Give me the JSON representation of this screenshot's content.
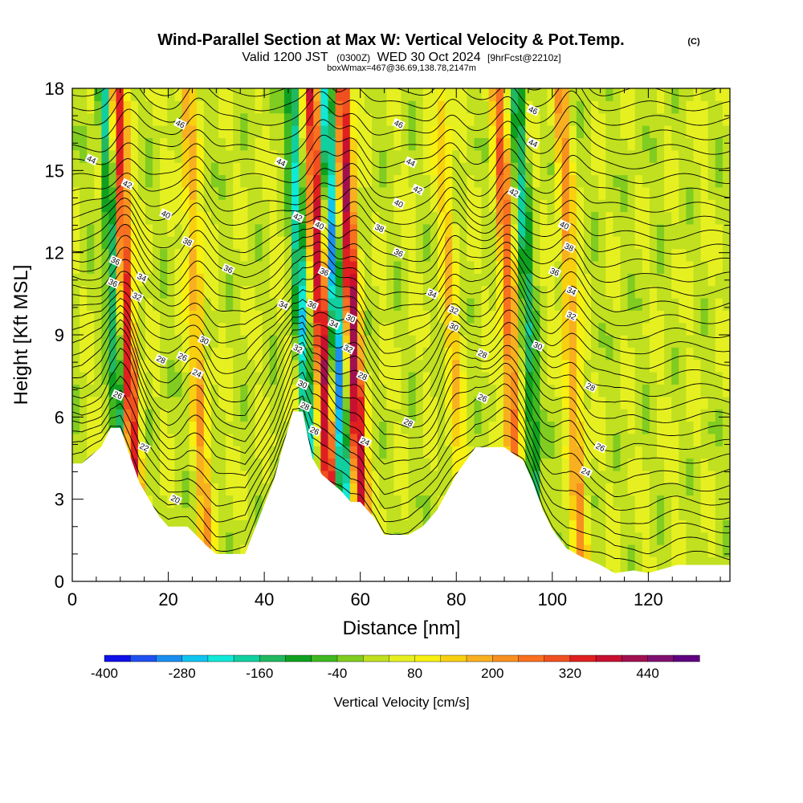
{
  "title": {
    "main": "Wind-Parallel Section at Max W: Vertical Velocity & Pot.Temp.",
    "copyright": "(C)",
    "valid_prefix": "Valid 1200 JST",
    "valid_utc": "(0300Z)",
    "valid_date": "WED 30 Oct 2024",
    "forecast": "[9hrFcst@2210z]",
    "boxwmax": "boxWmax=467@36.69,138.78,2147m"
  },
  "chart_data": {
    "type": "heatmap",
    "xlabel": "Distance [nm]",
    "ylabel": "Height [Kft MSL]",
    "xlim": [
      0,
      137
    ],
    "ylim": [
      0,
      18
    ],
    "x_ticks": [
      "0",
      "20",
      "40",
      "60",
      "80",
      "100",
      "120"
    ],
    "y_ticks": [
      "0",
      "3",
      "6",
      "9",
      "12",
      "15",
      "18"
    ],
    "terrain_kft": [
      [
        0,
        4.3
      ],
      [
        2,
        4.3
      ],
      [
        4,
        4.6
      ],
      [
        6,
        4.9
      ],
      [
        8,
        5.6
      ],
      [
        10,
        5.6
      ],
      [
        12,
        4.6
      ],
      [
        14,
        3.6
      ],
      [
        16,
        3.0
      ],
      [
        18,
        2.4
      ],
      [
        20,
        2.0
      ],
      [
        24,
        2.0
      ],
      [
        28,
        1.3
      ],
      [
        30,
        1.0
      ],
      [
        36,
        1.0
      ],
      [
        38,
        1.9
      ],
      [
        42,
        3.7
      ],
      [
        44,
        5.0
      ],
      [
        46,
        6.2
      ],
      [
        48,
        6.2
      ],
      [
        50,
        4.5
      ],
      [
        52,
        3.9
      ],
      [
        56,
        3.3
      ],
      [
        58,
        2.9
      ],
      [
        60,
        2.9
      ],
      [
        63,
        2.3
      ],
      [
        65,
        1.7
      ],
      [
        70,
        1.7
      ],
      [
        73,
        2.0
      ],
      [
        76,
        2.6
      ],
      [
        80,
        3.9
      ],
      [
        84,
        4.9
      ],
      [
        90,
        4.9
      ],
      [
        94,
        4.4
      ],
      [
        96,
        3.6
      ],
      [
        98,
        2.6
      ],
      [
        100,
        1.9
      ],
      [
        103,
        1.2
      ],
      [
        106,
        0.9
      ],
      [
        110,
        0.6
      ],
      [
        113,
        0.3
      ],
      [
        117,
        0.4
      ],
      [
        120,
        0.3
      ],
      [
        126,
        0.6
      ],
      [
        137,
        0.6
      ]
    ],
    "updrafts": [
      {
        "x": 11.5,
        "w_max": 330
      },
      {
        "x": 52,
        "w_max": 360
      },
      {
        "x": 58.5,
        "w_max": 380
      },
      {
        "x": 91,
        "w_max": 240
      },
      {
        "x": 26,
        "w_max": 160
      },
      {
        "x": 79,
        "w_max": 120
      },
      {
        "x": 104,
        "w_max": 180
      }
    ],
    "downdrafts": [
      {
        "x": 9,
        "w_min": -220
      },
      {
        "x": 48,
        "w_min": -240
      },
      {
        "x": 55,
        "w_min": -320
      },
      {
        "x": 95,
        "w_min": -180
      }
    ],
    "theta_labels": [
      {
        "x": 4,
        "z": 15.4,
        "v": "44"
      },
      {
        "x": 22.5,
        "z": 16.7,
        "v": "46"
      },
      {
        "x": 11.5,
        "z": 14.5,
        "v": "42"
      },
      {
        "x": 19.5,
        "z": 13.4,
        "v": "40"
      },
      {
        "x": 24,
        "z": 12.4,
        "v": "38"
      },
      {
        "x": 9,
        "z": 11.7,
        "v": "36"
      },
      {
        "x": 8.5,
        "z": 10.9,
        "v": "36"
      },
      {
        "x": 14.5,
        "z": 11.1,
        "v": "34"
      },
      {
        "x": 13.5,
        "z": 10.4,
        "v": "32"
      },
      {
        "x": 32.5,
        "z": 11.4,
        "v": "36"
      },
      {
        "x": 27.5,
        "z": 8.8,
        "v": "30"
      },
      {
        "x": 18.5,
        "z": 8.1,
        "v": "28"
      },
      {
        "x": 23,
        "z": 8.2,
        "v": "26"
      },
      {
        "x": 26,
        "z": 7.6,
        "v": "24"
      },
      {
        "x": 9.5,
        "z": 6.8,
        "v": "26"
      },
      {
        "x": 15,
        "z": 4.9,
        "v": "22"
      },
      {
        "x": 21.5,
        "z": 3.0,
        "v": "20"
      },
      {
        "x": 43.5,
        "z": 15.3,
        "v": "44"
      },
      {
        "x": 47,
        "z": 13.3,
        "v": "42"
      },
      {
        "x": 51.5,
        "z": 13.0,
        "v": "40"
      },
      {
        "x": 52.5,
        "z": 11.3,
        "v": "36"
      },
      {
        "x": 50,
        "z": 10.1,
        "v": "36"
      },
      {
        "x": 44,
        "z": 10.1,
        "v": "34"
      },
      {
        "x": 54.5,
        "z": 9.4,
        "v": "34"
      },
      {
        "x": 47,
        "z": 8.5,
        "v": "32"
      },
      {
        "x": 48,
        "z": 7.2,
        "v": "30"
      },
      {
        "x": 48.5,
        "z": 6.4,
        "v": "28"
      },
      {
        "x": 50.5,
        "z": 5.5,
        "v": "26"
      },
      {
        "x": 58,
        "z": 9.6,
        "v": "30"
      },
      {
        "x": 57.5,
        "z": 8.5,
        "v": "32"
      },
      {
        "x": 60.5,
        "z": 7.5,
        "v": "28"
      },
      {
        "x": 61,
        "z": 5.1,
        "v": "24"
      },
      {
        "x": 68,
        "z": 16.7,
        "v": "46"
      },
      {
        "x": 70.5,
        "z": 15.3,
        "v": "44"
      },
      {
        "x": 72,
        "z": 14.3,
        "v": "42"
      },
      {
        "x": 68,
        "z": 13.8,
        "v": "40"
      },
      {
        "x": 64,
        "z": 12.9,
        "v": "38"
      },
      {
        "x": 68,
        "z": 12.0,
        "v": "36"
      },
      {
        "x": 75,
        "z": 10.5,
        "v": "34"
      },
      {
        "x": 79.5,
        "z": 9.9,
        "v": "32"
      },
      {
        "x": 79.5,
        "z": 9.3,
        "v": "30"
      },
      {
        "x": 85.5,
        "z": 8.3,
        "v": "28"
      },
      {
        "x": 85.5,
        "z": 6.7,
        "v": "26"
      },
      {
        "x": 70,
        "z": 5.8,
        "v": "28"
      },
      {
        "x": 96,
        "z": 17.2,
        "v": "46"
      },
      {
        "x": 96,
        "z": 16.0,
        "v": "44"
      },
      {
        "x": 92,
        "z": 14.2,
        "v": "42"
      },
      {
        "x": 102.5,
        "z": 13.0,
        "v": "40"
      },
      {
        "x": 103.5,
        "z": 12.2,
        "v": "38"
      },
      {
        "x": 100.5,
        "z": 11.3,
        "v": "36"
      },
      {
        "x": 104,
        "z": 10.6,
        "v": "34"
      },
      {
        "x": 104,
        "z": 9.7,
        "v": "32"
      },
      {
        "x": 97,
        "z": 8.6,
        "v": "30"
      },
      {
        "x": 108,
        "z": 7.1,
        "v": "28"
      },
      {
        "x": 110,
        "z": 4.9,
        "v": "26"
      },
      {
        "x": 107,
        "z": 4.0,
        "v": "24"
      }
    ],
    "colorbar": {
      "label": "Vertical Velocity [cm/s]",
      "min": -400,
      "step": 40,
      "levels": 23,
      "tick_labels": [
        "-400",
        "-280",
        "-160",
        "-40",
        "80",
        "200",
        "320",
        "440"
      ],
      "colors": [
        "#1010e8",
        "#2050f0",
        "#1a8ef0",
        "#10c4f0",
        "#10e8d8",
        "#10d0a0",
        "#20b860",
        "#10a020",
        "#40b820",
        "#80cc20",
        "#c0e020",
        "#e6f020",
        "#f8f010",
        "#f8d010",
        "#f8b020",
        "#f89020",
        "#f87020",
        "#f05020",
        "#e02020",
        "#c81030",
        "#a01050",
        "#801070",
        "#600080"
      ]
    }
  }
}
